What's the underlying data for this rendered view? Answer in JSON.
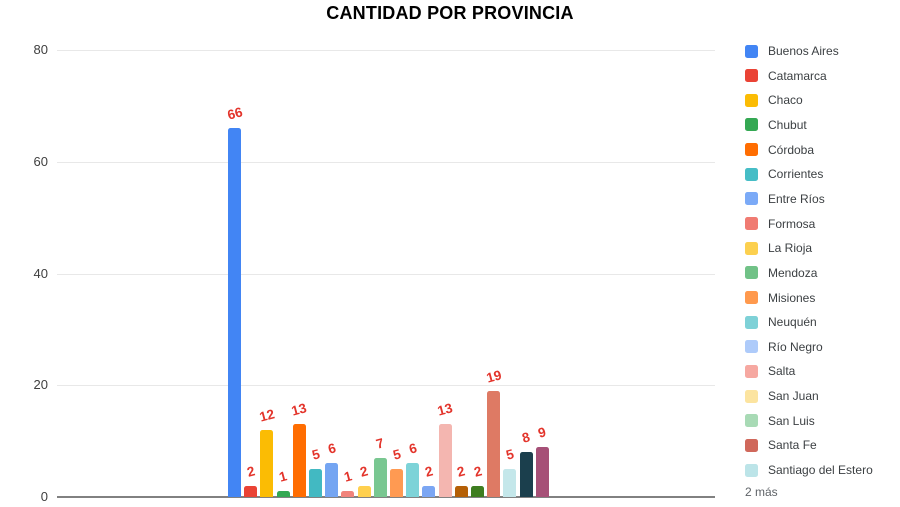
{
  "chart_data": {
    "type": "bar",
    "title": "CANTIDAD POR PROVINCIA",
    "ylabel": "",
    "xlabel": "",
    "ylim": [
      0,
      80
    ],
    "yticks": [
      0,
      20,
      40,
      60,
      80
    ],
    "grid": true,
    "legend_position": "right",
    "legend_overflow_label": "2 más",
    "value_label_color": "#E3342B",
    "axis": {
      "tick_label_color": "#3f3f3f",
      "grid_color": "#e8e8e8",
      "baseline_color": "#818181"
    },
    "series": [
      {
        "name": "Buenos Aires",
        "value": 66,
        "bar_color": "#4285F4",
        "legend_color": "#4285F4",
        "in_legend": true
      },
      {
        "name": "Catamarca",
        "value": 2,
        "bar_color": "#EA4335",
        "legend_color": "#EA4335",
        "in_legend": true
      },
      {
        "name": "Chaco",
        "value": 12,
        "bar_color": "#FBBC04",
        "legend_color": "#FBBC04",
        "in_legend": true
      },
      {
        "name": "Chubut",
        "value": 1,
        "bar_color": "#34A853",
        "legend_color": "#34A853",
        "in_legend": true
      },
      {
        "name": "Córdoba",
        "value": 13,
        "bar_color": "#FF6D01",
        "legend_color": "#FF6D01",
        "in_legend": true
      },
      {
        "name": "Corrientes",
        "value": 5,
        "bar_color": "#42B9C2",
        "legend_color": "#46BDC6",
        "in_legend": true
      },
      {
        "name": "Entre Ríos",
        "value": 6,
        "bar_color": "#74A5F2",
        "legend_color": "#7BAAF7",
        "in_legend": true
      },
      {
        "name": "Formosa",
        "value": 1,
        "bar_color": "#F1837B",
        "legend_color": "#F07B72",
        "in_legend": true
      },
      {
        "name": "La Rioja",
        "value": 2,
        "bar_color": "#FFD04E",
        "legend_color": "#FCD04F",
        "in_legend": true
      },
      {
        "name": "Mendoza",
        "value": 7,
        "bar_color": "#79C791",
        "legend_color": "#71C287",
        "in_legend": true
      },
      {
        "name": "Misiones",
        "value": 5,
        "bar_color": "#FF9A52",
        "legend_color": "#FF994D",
        "in_legend": true
      },
      {
        "name": "Neuquén",
        "value": 6,
        "bar_color": "#7DD3D8",
        "legend_color": "#7ED1D7",
        "in_legend": true
      },
      {
        "name": "Río Negro",
        "value": 2,
        "bar_color": "#7BA6F3",
        "legend_color": "#AECBFA",
        "in_legend": true
      },
      {
        "name": "Salta",
        "value": 13,
        "bar_color": "#F4B6B0",
        "legend_color": "#F6A8A1",
        "in_legend": true
      },
      {
        "name": "San Juan",
        "value": 2,
        "bar_color": "#B45F06",
        "legend_color": "#FCE4A0",
        "in_legend": true
      },
      {
        "name": "San Luis",
        "value": 2,
        "bar_color": "#3E7D20",
        "legend_color": "#A8DAB5",
        "in_legend": true
      },
      {
        "name": "Santa Fe",
        "value": 19,
        "bar_color": "#DE7A64",
        "legend_color": "#D0685B",
        "in_legend": true
      },
      {
        "name": "Santiago del Estero",
        "value": 5,
        "bar_color": "#C4E7EA",
        "legend_color": "#BCE4E8",
        "in_legend": true
      },
      {
        "name": "",
        "value": 8,
        "bar_color": "#1B3F4D",
        "legend_color": "#1B3F4D",
        "in_legend": false
      },
      {
        "name": "",
        "value": 9,
        "bar_color": "#A65077",
        "legend_color": "#A65077",
        "in_legend": false
      }
    ]
  }
}
